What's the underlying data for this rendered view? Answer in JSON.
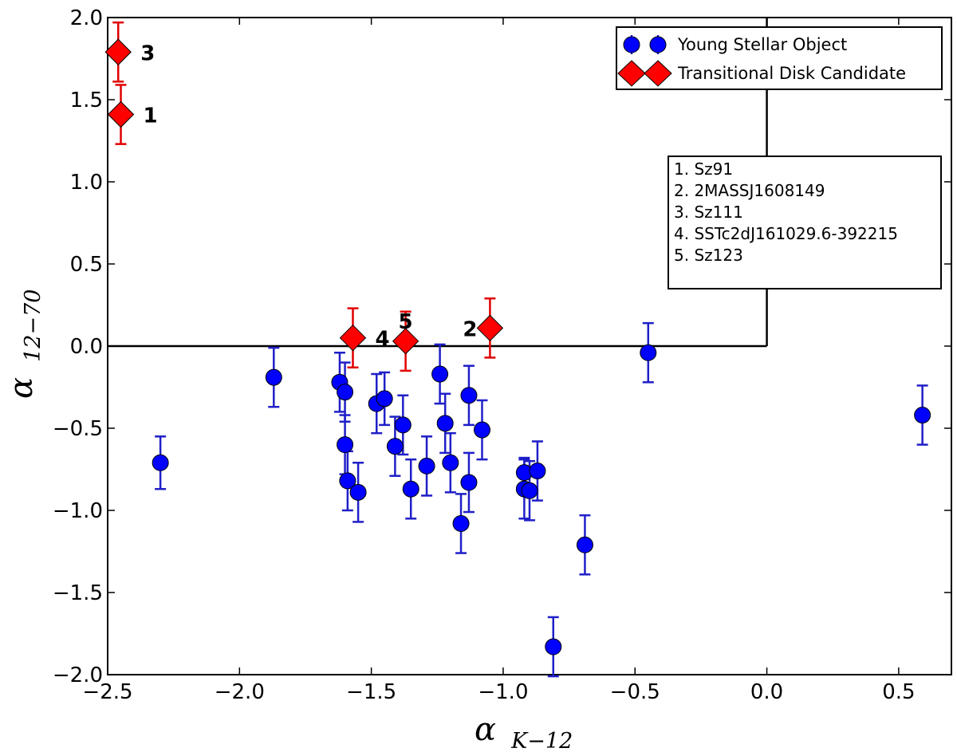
{
  "chart_data": {
    "type": "scatter",
    "x_axis": {
      "label_main": "α",
      "label_sub": "K−12",
      "range": [
        -2.5,
        0.7
      ],
      "ticks": [
        -2.5,
        -2.0,
        -1.5,
        -1.0,
        -0.5,
        0.0,
        0.5
      ],
      "tick_labels": [
        "−2.5",
        "−2.0",
        "−1.5",
        "−1.0",
        "−0.5",
        "0.0",
        "0.5"
      ]
    },
    "y_axis": {
      "label_main": "α",
      "label_sub": "12−70",
      "range": [
        -2.0,
        2.0
      ],
      "ticks": [
        -2.0,
        -1.5,
        -1.0,
        -0.5,
        0.0,
        0.5,
        1.0,
        1.5,
        2.0
      ],
      "tick_labels": [
        "−2.0",
        "−1.5",
        "−1.0",
        "−0.5",
        "0.0",
        "0.5",
        "1.0",
        "1.5",
        "2.0"
      ]
    },
    "grid": false,
    "boundary_lines": [
      {
        "points": [
          [
            -2.5,
            0.0
          ],
          [
            0.0,
            0.0
          ]
        ]
      },
      {
        "points": [
          [
            0.0,
            0.0
          ],
          [
            0.0,
            2.0
          ]
        ]
      }
    ],
    "legend": {
      "placement": "top-right",
      "entries": [
        "Young Stellar Object",
        "Transitional Disk Candidate"
      ]
    },
    "names_box": {
      "placement": "upper-right",
      "lines": [
        "1. Sz91",
        "2. 2MASSJ1608149",
        "3. Sz111",
        "4. SSTc2dJ161029.6-392215",
        "5. Sz123"
      ]
    },
    "series": [
      {
        "name": "Young Stellar Object",
        "marker": "circle",
        "color": "#0000ff",
        "error_color": "#1f1fc8",
        "points": [
          {
            "x": -2.3,
            "y": -0.71,
            "err": 0.16
          },
          {
            "x": -1.87,
            "y": -0.19,
            "err": 0.18
          },
          {
            "x": -1.62,
            "y": -0.22,
            "err": 0.18
          },
          {
            "x": -1.6,
            "y": -0.28,
            "err": 0.18
          },
          {
            "x": -1.6,
            "y": -0.6,
            "err": 0.18
          },
          {
            "x": -1.59,
            "y": -0.82,
            "err": 0.18
          },
          {
            "x": -1.55,
            "y": -0.89,
            "err": 0.18
          },
          {
            "x": -1.48,
            "y": -0.35,
            "err": 0.18
          },
          {
            "x": -1.45,
            "y": -0.32,
            "err": 0.16
          },
          {
            "x": -1.41,
            "y": -0.61,
            "err": 0.18
          },
          {
            "x": -1.38,
            "y": -0.48,
            "err": 0.18
          },
          {
            "x": -1.35,
            "y": -0.87,
            "err": 0.18
          },
          {
            "x": -1.29,
            "y": -0.73,
            "err": 0.18
          },
          {
            "x": -1.24,
            "y": -0.17,
            "err": 0.18
          },
          {
            "x": -1.22,
            "y": -0.47,
            "err": 0.18
          },
          {
            "x": -1.2,
            "y": -0.71,
            "err": 0.18
          },
          {
            "x": -1.16,
            "y": -1.08,
            "err": 0.18
          },
          {
            "x": -1.13,
            "y": -0.3,
            "err": 0.18
          },
          {
            "x": -1.13,
            "y": -0.83,
            "err": 0.18
          },
          {
            "x": -1.08,
            "y": -0.51,
            "err": 0.18
          },
          {
            "x": -0.92,
            "y": -0.77,
            "err": 0.09
          },
          {
            "x": -0.92,
            "y": -0.87,
            "err": 0.18
          },
          {
            "x": -0.9,
            "y": -0.88,
            "err": 0.18
          },
          {
            "x": -0.87,
            "y": -0.76,
            "err": 0.18
          },
          {
            "x": -0.81,
            "y": -1.83,
            "err": 0.18
          },
          {
            "x": -0.69,
            "y": -1.21,
            "err": 0.18
          },
          {
            "x": -0.45,
            "y": -0.04,
            "err": 0.18
          },
          {
            "x": 0.59,
            "y": -0.42,
            "err": 0.18
          }
        ]
      },
      {
        "name": "Transitional Disk Candidate",
        "marker": "diamond",
        "color": "#ff0000",
        "error_color": "#e00000",
        "points": [
          {
            "x": -2.45,
            "y": 1.41,
            "err": 0.18,
            "label": "1"
          },
          {
            "x": -1.05,
            "y": 0.11,
            "err": 0.18,
            "label": "2"
          },
          {
            "x": -2.46,
            "y": 1.79,
            "err": 0.18,
            "label": "3"
          },
          {
            "x": -1.57,
            "y": 0.05,
            "err": 0.18,
            "label": "4"
          },
          {
            "x": -1.37,
            "y": 0.03,
            "err": 0.18,
            "label": "5"
          }
        ]
      }
    ]
  }
}
